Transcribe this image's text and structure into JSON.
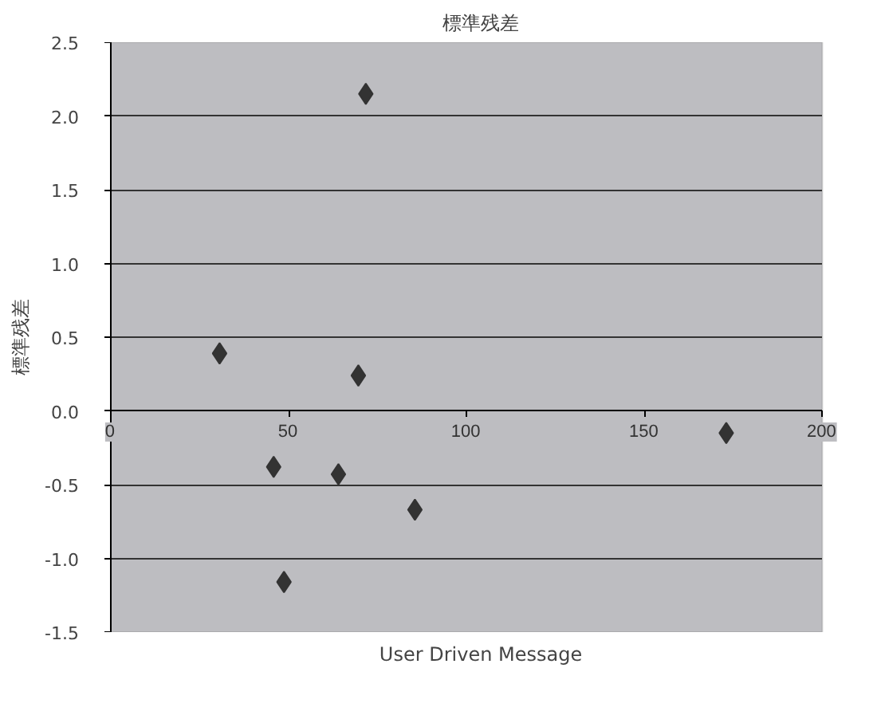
{
  "chart_data": {
    "type": "scatter",
    "title": "標準残差",
    "xlabel": "User Driven Message",
    "ylabel": "標準残差",
    "x": [
      30.6,
      45.8,
      48.7,
      71.7,
      69.6,
      64,
      85.5,
      173
    ],
    "series": [
      {
        "color": "#333333",
        "values": [
          0.39,
          -0.38,
          -1.16,
          2.15,
          0.24,
          -0.43,
          -0.67,
          -0.15
        ]
      }
    ],
    "xlim": [
      0,
      200
    ],
    "xticks": [
      0,
      50,
      100,
      150,
      200
    ],
    "ylim": [
      -1.5,
      2.5
    ],
    "yticks": [
      {
        "value": -1.5,
        "label": "-1.5"
      },
      {
        "value": -1.0,
        "label": "-1.0"
      },
      {
        "value": -0.5,
        "label": "-0.5"
      },
      {
        "value": 0,
        "label": "0.0"
      },
      {
        "value": 0.5,
        "label": "0.5"
      },
      {
        "value": 1.0,
        "label": "1.0"
      },
      {
        "value": 1.5,
        "label": "1.5"
      },
      {
        "value": 2.0,
        "label": "2.0"
      },
      {
        "value": 2.5,
        "label": "2.5"
      }
    ],
    "grid": "y",
    "marker": "diamond"
  }
}
